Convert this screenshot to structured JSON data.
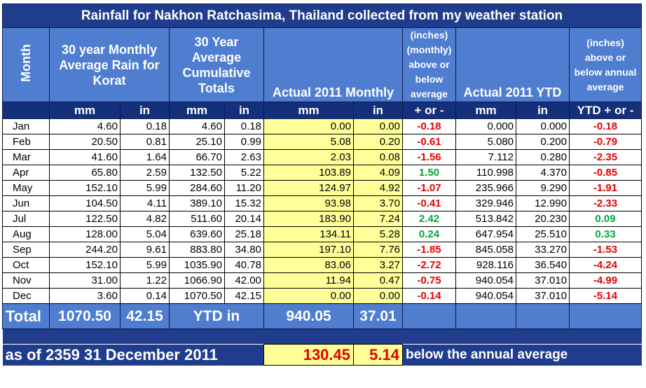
{
  "title": "Rainfall for Nakhon Ratchasima, Thailand collected from my weather station",
  "headers": {
    "month": "Month",
    "avg_monthly": "30 year Monthly Average Rain for Korat",
    "avg_cumulative": "30 Year Average Cumulative Totals",
    "actual_monthly": "Actual 2011 Monthly",
    "monthly_diff": "(inches) (monthly) above or below average",
    "actual_ytd": "Actual 2011 YTD",
    "annual_diff": "(inches) above or below annual average"
  },
  "subheaders": [
    "mm",
    "in",
    "mm",
    "in",
    "mm",
    "in",
    "+ or -",
    "mm",
    "in",
    "YTD + or -"
  ],
  "rows": [
    {
      "month": "Jan",
      "avg_mm": "4.60",
      "avg_in": "0.18",
      "cum_mm": "4.60",
      "cum_in": "0.18",
      "act_mm": "0.00",
      "act_in": "0.00",
      "diff": "-0.18",
      "ytd_mm": "0.000",
      "ytd_in": "0.000",
      "ytd_diff": "-0.18"
    },
    {
      "month": "Feb",
      "avg_mm": "20.50",
      "avg_in": "0.81",
      "cum_mm": "25.10",
      "cum_in": "0.99",
      "act_mm": "5.08",
      "act_in": "0.20",
      "diff": "-0.61",
      "ytd_mm": "5.080",
      "ytd_in": "0.200",
      "ytd_diff": "-0.79"
    },
    {
      "month": "Mar",
      "avg_mm": "41.60",
      "avg_in": "1.64",
      "cum_mm": "66.70",
      "cum_in": "2.63",
      "act_mm": "2.03",
      "act_in": "0.08",
      "diff": "-1.56",
      "ytd_mm": "7.112",
      "ytd_in": "0.280",
      "ytd_diff": "-2.35"
    },
    {
      "month": "Apr",
      "avg_mm": "65.80",
      "avg_in": "2.59",
      "cum_mm": "132.50",
      "cum_in": "5.22",
      "act_mm": "103.89",
      "act_in": "4.09",
      "diff": "1.50",
      "ytd_mm": "110.998",
      "ytd_in": "4.370",
      "ytd_diff": "-0.85"
    },
    {
      "month": "May",
      "avg_mm": "152.10",
      "avg_in": "5.99",
      "cum_mm": "284.60",
      "cum_in": "11.20",
      "act_mm": "124.97",
      "act_in": "4.92",
      "diff": "-1.07",
      "ytd_mm": "235.966",
      "ytd_in": "9.290",
      "ytd_diff": "-1.91"
    },
    {
      "month": "Jun",
      "avg_mm": "104.50",
      "avg_in": "4.11",
      "cum_mm": "389.10",
      "cum_in": "15.32",
      "act_mm": "93.98",
      "act_in": "3.70",
      "diff": "-0.41",
      "ytd_mm": "329.946",
      "ytd_in": "12.990",
      "ytd_diff": "-2.33"
    },
    {
      "month": "Jul",
      "avg_mm": "122.50",
      "avg_in": "4.82",
      "cum_mm": "511.60",
      "cum_in": "20.14",
      "act_mm": "183.90",
      "act_in": "7.24",
      "diff": "2.42",
      "ytd_mm": "513.842",
      "ytd_in": "20.230",
      "ytd_diff": "0.09"
    },
    {
      "month": "Aug",
      "avg_mm": "128.00",
      "avg_in": "5.04",
      "cum_mm": "639.60",
      "cum_in": "25.18",
      "act_mm": "134.11",
      "act_in": "5.28",
      "diff": "0.24",
      "ytd_mm": "647.954",
      "ytd_in": "25.510",
      "ytd_diff": "0.33"
    },
    {
      "month": "Sep",
      "avg_mm": "244.20",
      "avg_in": "9.61",
      "cum_mm": "883.80",
      "cum_in": "34.80",
      "act_mm": "197.10",
      "act_in": "7.76",
      "diff": "-1.85",
      "ytd_mm": "845.058",
      "ytd_in": "33.270",
      "ytd_diff": "-1.53"
    },
    {
      "month": "Oct",
      "avg_mm": "152.10",
      "avg_in": "5.99",
      "cum_mm": "1035.90",
      "cum_in": "40.78",
      "act_mm": "83.06",
      "act_in": "3.27",
      "diff": "-2.72",
      "ytd_mm": "928.116",
      "ytd_in": "36.540",
      "ytd_diff": "-4.24"
    },
    {
      "month": "Nov",
      "avg_mm": "31.00",
      "avg_in": "1.22",
      "cum_mm": "1066.90",
      "cum_in": "42.00",
      "act_mm": "11.94",
      "act_in": "0.47",
      "diff": "-0.75",
      "ytd_mm": "940.054",
      "ytd_in": "37.010",
      "ytd_diff": "-4.99"
    },
    {
      "month": "Dec",
      "avg_mm": "3.60",
      "avg_in": "0.14",
      "cum_mm": "1070.50",
      "cum_in": "42.15",
      "act_mm": "0.00",
      "act_in": "0.00",
      "diff": "-0.14",
      "ytd_mm": "940.054",
      "ytd_in": "37.010",
      "ytd_diff": "-5.14"
    }
  ],
  "total": {
    "label": "Total",
    "avg_mm": "1070.50",
    "avg_in": "42.15",
    "ytd_label": "YTD in",
    "act_mm": "940.05",
    "act_in": "37.01"
  },
  "footer": {
    "as_of": "as of 2359 31 December 2011",
    "below_mm": "130.45",
    "below_in": "5.14",
    "note": "below the annual average"
  },
  "colors": {
    "header_dark": "#1f3d8c",
    "header_light": "#4f7dd0",
    "highlight_yellow": "#ffff99",
    "negative": "#e60000",
    "positive": "#00a832"
  }
}
